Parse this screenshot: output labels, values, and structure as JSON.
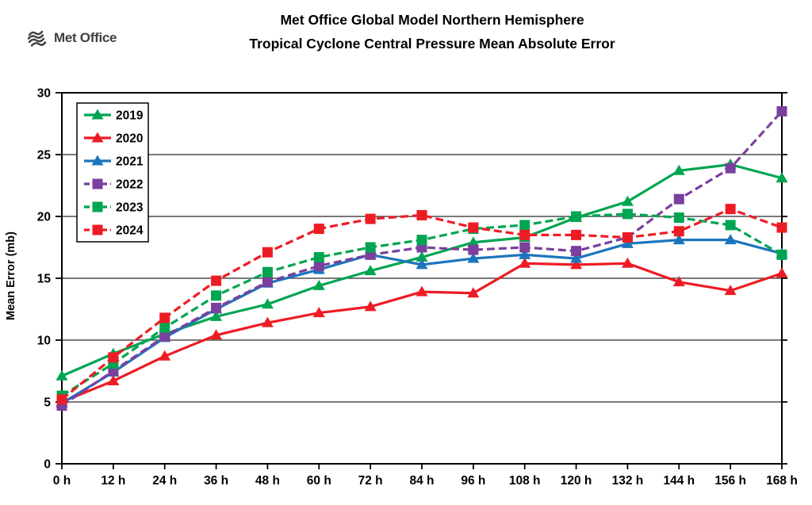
{
  "header": {
    "logo_text": "Met Office",
    "title_line1": "Met Office Global Model Northern Hemisphere",
    "title_line2": "Tropical Cyclone Central Pressure Mean Absolute Error"
  },
  "chart_data": {
    "type": "line",
    "title": "Met Office Global Model Northern Hemisphere — Tropical Cyclone Central Pressure Mean Absolute Error",
    "xlabel": "",
    "ylabel": "Mean Error (mb)",
    "ylim": [
      0,
      30
    ],
    "y_ticks": [
      0,
      5,
      10,
      15,
      20,
      25,
      30
    ],
    "grid": true,
    "legend_position": "top-left",
    "categories": [
      "0 h",
      "12 h",
      "24 h",
      "36 h",
      "48 h",
      "60 h",
      "72 h",
      "84 h",
      "96 h",
      "108 h",
      "120 h",
      "132 h",
      "144 h",
      "156 h",
      "168 h"
    ],
    "series": [
      {
        "name": "2019",
        "color": "#00A551",
        "line": "solid",
        "marker": "triangle",
        "values": [
          7.1,
          8.9,
          10.5,
          11.9,
          12.9,
          14.4,
          15.6,
          16.7,
          17.9,
          18.3,
          19.9,
          21.2,
          23.7,
          24.2,
          23.1
        ]
      },
      {
        "name": "2020",
        "color": "#ED1C24",
        "line": "solid",
        "marker": "triangle",
        "values": [
          5.0,
          6.7,
          8.7,
          10.4,
          11.4,
          12.2,
          12.7,
          13.9,
          13.8,
          16.2,
          16.1,
          16.2,
          14.7,
          14.0,
          15.4
        ]
      },
      {
        "name": "2021",
        "color": "#1C75BC",
        "line": "solid",
        "marker": "triangle",
        "values": [
          4.9,
          7.4,
          10.2,
          12.5,
          14.6,
          15.7,
          16.9,
          16.1,
          16.6,
          16.9,
          16.6,
          17.8,
          18.1,
          18.1,
          17.0
        ]
      },
      {
        "name": "2022",
        "color": "#7B3F9E",
        "line": "dashed",
        "marker": "square",
        "values": [
          4.7,
          7.5,
          10.3,
          12.6,
          14.7,
          16.0,
          16.9,
          17.5,
          17.3,
          17.5,
          17.2,
          18.3,
          21.4,
          23.9,
          28.5
        ]
      },
      {
        "name": "2023",
        "color": "#00A551",
        "line": "dashed",
        "marker": "square",
        "values": [
          5.5,
          8.1,
          11.0,
          13.6,
          15.5,
          16.7,
          17.5,
          18.1,
          19.0,
          19.3,
          20.0,
          20.2,
          19.9,
          19.3,
          16.9
        ]
      },
      {
        "name": "2024",
        "color": "#ED1C24",
        "line": "dashed",
        "marker": "square",
        "values": [
          5.2,
          8.6,
          11.8,
          14.8,
          17.1,
          19.0,
          19.8,
          20.1,
          19.1,
          18.5,
          18.5,
          18.3,
          18.8,
          20.6,
          19.1
        ]
      }
    ]
  },
  "colors": {
    "grid": "#4D4D4D",
    "frame": "#000000",
    "logo": "#414042"
  }
}
